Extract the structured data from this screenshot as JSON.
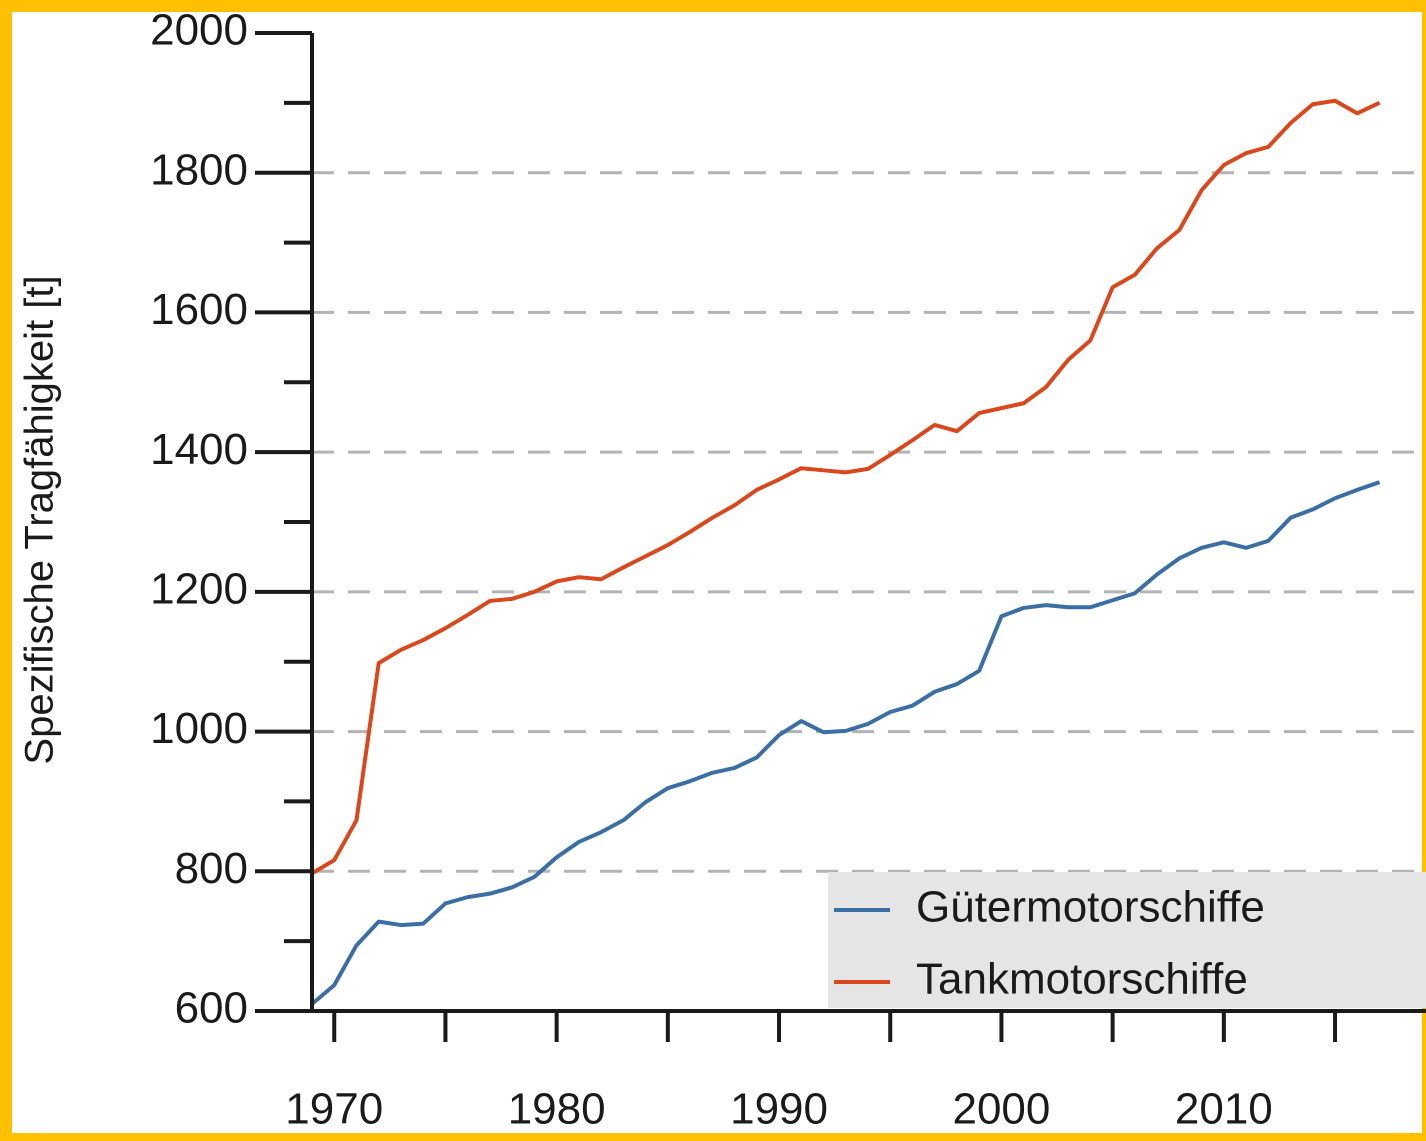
{
  "chart_data": {
    "type": "line",
    "y_label": "Spezifische Tragfähigkeit [t]",
    "x": [
      1969,
      1970,
      1971,
      1972,
      1973,
      1974,
      1975,
      1976,
      1977,
      1978,
      1979,
      1980,
      1981,
      1982,
      1983,
      1984,
      1985,
      1986,
      1987,
      1988,
      1989,
      1990,
      1991,
      1992,
      1993,
      1994,
      1995,
      1996,
      1997,
      1998,
      1999,
      2000,
      2001,
      2002,
      2003,
      2004,
      2005,
      2006,
      2007,
      2008,
      2009,
      2010,
      2011,
      2012,
      2013,
      2014,
      2015,
      2016,
      2017
    ],
    "series": [
      {
        "name": "Gütermotorschiffe",
        "color": "#3a6ea5",
        "values": [
          610,
          637,
          694,
          728,
          723,
          725,
          754,
          763,
          768,
          777,
          792,
          820,
          842,
          856,
          873,
          899,
          919,
          929,
          941,
          948,
          963,
          995,
          1015,
          999,
          1001,
          1011,
          1028,
          1037,
          1057,
          1068,
          1087,
          1165,
          1177,
          1181,
          1178,
          1178,
          1188,
          1198,
          1225,
          1248,
          1263,
          1271,
          1263,
          1273,
          1306,
          1318,
          1334,
          1346,
          1357
        ]
      },
      {
        "name": "Tankmotorschiffe",
        "color": "#d9481c",
        "values": [
          797,
          816,
          873,
          1098,
          1117,
          1131,
          1148,
          1167,
          1187,
          1190,
          1200,
          1215,
          1221,
          1218,
          1235,
          1251,
          1267,
          1286,
          1306,
          1324,
          1346,
          1361,
          1377,
          1374,
          1371,
          1376,
          1396,
          1417,
          1439,
          1430,
          1456,
          1463,
          1470,
          1493,
          1532,
          1560,
          1636,
          1654,
          1692,
          1718,
          1775,
          1811,
          1828,
          1837,
          1871,
          1898,
          1903,
          1885,
          1900
        ]
      }
    ],
    "xlim": [
      1969,
      2019
    ],
    "ylim": [
      600,
      2000
    ],
    "xticks": [
      1970,
      1980,
      1990,
      2000,
      2010
    ],
    "xticks_minor": [
      1975,
      1985,
      1995,
      2005,
      2015
    ],
    "yticks": [
      600,
      800,
      1000,
      1200,
      1400,
      1600,
      1800,
      2000
    ],
    "yticks_minor": [
      700,
      900,
      1100,
      1300,
      1500,
      1700,
      1900
    ],
    "grid": true,
    "legend": "lower right"
  }
}
